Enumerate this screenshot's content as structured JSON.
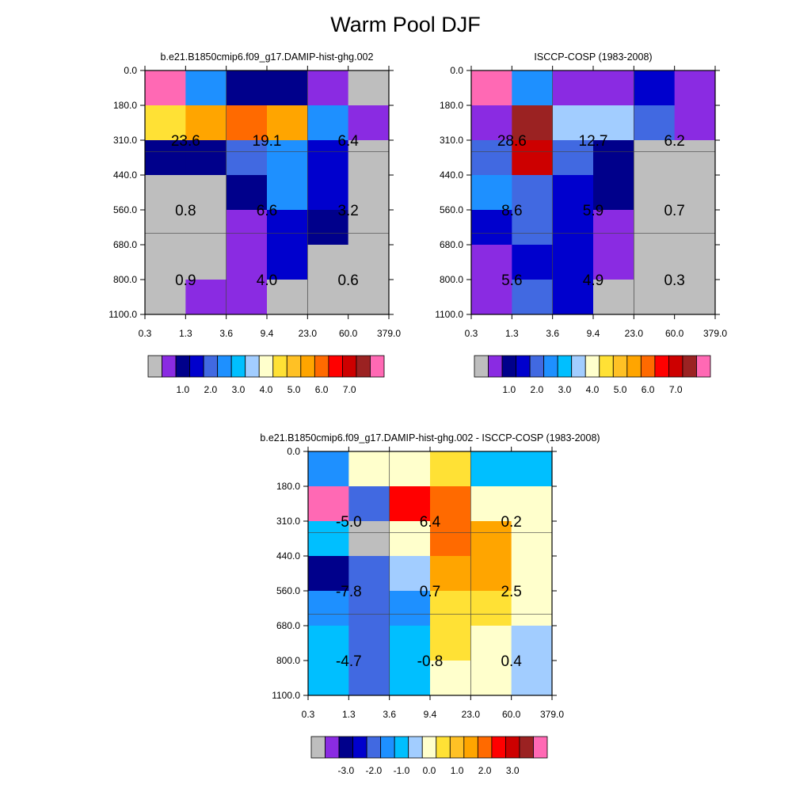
{
  "figure_title": "Warm Pool DJF",
  "chart_data": [
    {
      "type": "heatmap",
      "title": "b.e21.B1850cmip6.f09_g17.DAMIP-hist-ghg.002",
      "x_ticks": [
        "0.3",
        "1.3",
        "3.6",
        "9.4",
        "23.0",
        "60.0",
        "379.0"
      ],
      "y_ticks": [
        "0.0",
        "180.0",
        "310.0",
        "440.0",
        "560.0",
        "680.0",
        "800.0",
        "1100.0"
      ],
      "cell_colors": [
        [
          "#ff69b4",
          "#1e90ff",
          "#00008b",
          "#00008b",
          "#8a2be2",
          "#bebebe"
        ],
        [
          "#ffe135",
          "#ffa500",
          "#ff6a00",
          "#ffa500",
          "#1e90ff",
          "#8a2be2"
        ],
        [
          "#00008b",
          "#00008b",
          "#4169e1",
          "#1e90ff",
          "#0000cd",
          "#bebebe"
        ],
        [
          "#bebebe",
          "#bebebe",
          "#00008b",
          "#1e90ff",
          "#0000cd",
          "#bebebe"
        ],
        [
          "#bebebe",
          "#bebebe",
          "#8a2be2",
          "#0000cd",
          "#00008b",
          "#bebebe"
        ],
        [
          "#bebebe",
          "#bebebe",
          "#8a2be2",
          "#0000cd",
          "#bebebe",
          "#bebebe"
        ],
        [
          "#bebebe",
          "#8a2be2",
          "#8a2be2",
          "#bebebe",
          "#bebebe",
          "#bebebe"
        ]
      ],
      "annotations": [
        {
          "text": "23.6",
          "col": 0,
          "row": 1
        },
        {
          "text": "19.1",
          "col": 1,
          "row": 1
        },
        {
          "text": "6.4",
          "col": 2,
          "row": 1
        },
        {
          "text": "0.8",
          "col": 0,
          "row": 3
        },
        {
          "text": "6.6",
          "col": 1,
          "row": 3
        },
        {
          "text": "3.2",
          "col": 2,
          "row": 3
        },
        {
          "text": "0.9",
          "col": 0,
          "row": 5
        },
        {
          "text": "4.0",
          "col": 1,
          "row": 5
        },
        {
          "text": "0.6",
          "col": 2,
          "row": 5
        }
      ],
      "colorbar": {
        "colors": [
          "#bebebe",
          "#8a2be2",
          "#00008b",
          "#0000cd",
          "#4169e1",
          "#1e90ff",
          "#00bfff",
          "#a2cdff",
          "#ffffcc",
          "#ffe135",
          "#ffc125",
          "#ffa500",
          "#ff6a00",
          "#ff0000",
          "#cd0000",
          "#9b2222",
          "#ff69b4"
        ],
        "labels": [
          "1.0",
          "2.0",
          "3.0",
          "4.0",
          "5.0",
          "6.0",
          "7.0"
        ]
      }
    },
    {
      "type": "heatmap",
      "title": "ISCCP-COSP (1983-2008)",
      "x_ticks": [
        "0.3",
        "1.3",
        "3.6",
        "9.4",
        "23.0",
        "60.0",
        "379.0"
      ],
      "y_ticks": [
        "0.0",
        "180.0",
        "310.0",
        "440.0",
        "560.0",
        "680.0",
        "800.0",
        "1100.0"
      ],
      "cell_colors": [
        [
          "#ff69b4",
          "#1e90ff",
          "#8a2be2",
          "#8a2be2",
          "#0000cd",
          "#8a2be2"
        ],
        [
          "#8a2be2",
          "#9b2222",
          "#a2cdff",
          "#a2cdff",
          "#4169e1",
          "#8a2be2"
        ],
        [
          "#4169e1",
          "#cd0000",
          "#4169e1",
          "#00008b",
          "#bebebe",
          "#bebebe"
        ],
        [
          "#1e90ff",
          "#4169e1",
          "#0000cd",
          "#00008b",
          "#bebebe",
          "#bebebe"
        ],
        [
          "#0000cd",
          "#4169e1",
          "#0000cd",
          "#8a2be2",
          "#bebebe",
          "#bebebe"
        ],
        [
          "#8a2be2",
          "#0000cd",
          "#0000cd",
          "#8a2be2",
          "#bebebe",
          "#bebebe"
        ],
        [
          "#8a2be2",
          "#4169e1",
          "#0000cd",
          "#bebebe",
          "#bebebe",
          "#bebebe"
        ]
      ],
      "annotations": [
        {
          "text": "28.6",
          "col": 0,
          "row": 1
        },
        {
          "text": "12.7",
          "col": 1,
          "row": 1
        },
        {
          "text": "6.2",
          "col": 2,
          "row": 1
        },
        {
          "text": "8.6",
          "col": 0,
          "row": 3
        },
        {
          "text": "5.9",
          "col": 1,
          "row": 3
        },
        {
          "text": "0.7",
          "col": 2,
          "row": 3
        },
        {
          "text": "5.6",
          "col": 0,
          "row": 5
        },
        {
          "text": "4.9",
          "col": 1,
          "row": 5
        },
        {
          "text": "0.3",
          "col": 2,
          "row": 5
        }
      ],
      "colorbar": {
        "colors": [
          "#bebebe",
          "#8a2be2",
          "#00008b",
          "#0000cd",
          "#4169e1",
          "#1e90ff",
          "#00bfff",
          "#a2cdff",
          "#ffffcc",
          "#ffe135",
          "#ffc125",
          "#ffa500",
          "#ff6a00",
          "#ff0000",
          "#cd0000",
          "#9b2222",
          "#ff69b4"
        ],
        "labels": [
          "1.0",
          "2.0",
          "3.0",
          "4.0",
          "5.0",
          "6.0",
          "7.0"
        ]
      }
    },
    {
      "type": "heatmap",
      "title": "b.e21.B1850cmip6.f09_g17.DAMIP-hist-ghg.002 - ISCCP-COSP (1983-2008)",
      "x_ticks": [
        "0.3",
        "1.3",
        "3.6",
        "9.4",
        "23.0",
        "60.0",
        "379.0"
      ],
      "y_ticks": [
        "0.0",
        "180.0",
        "310.0",
        "440.0",
        "560.0",
        "680.0",
        "800.0",
        "1100.0"
      ],
      "cell_colors": [
        [
          "#1e90ff",
          "#ffffcc",
          "#ffffcc",
          "#ffe135",
          "#00bfff",
          "#00bfff"
        ],
        [
          "#ff69b4",
          "#4169e1",
          "#ff0000",
          "#ff6a00",
          "#ffffcc",
          "#ffffcc"
        ],
        [
          "#00bfff",
          "#bebebe",
          "#ffffcc",
          "#ff6a00",
          "#ffa500",
          "#ffffcc"
        ],
        [
          "#00008b",
          "#4169e1",
          "#a2cdff",
          "#ffa500",
          "#ffa500",
          "#ffffcc"
        ],
        [
          "#1e90ff",
          "#4169e1",
          "#1e90ff",
          "#ffe135",
          "#ffe135",
          "#ffffcc"
        ],
        [
          "#00bfff",
          "#4169e1",
          "#00bfff",
          "#ffe135",
          "#ffffcc",
          "#a2cdff"
        ],
        [
          "#00bfff",
          "#4169e1",
          "#00bfff",
          "#ffffcc",
          "#ffffcc",
          "#a2cdff"
        ]
      ],
      "annotations": [
        {
          "text": "-5.0",
          "col": 0,
          "row": 1
        },
        {
          "text": "6.4",
          "col": 1,
          "row": 1
        },
        {
          "text": "0.2",
          "col": 2,
          "row": 1
        },
        {
          "text": "-7.8",
          "col": 0,
          "row": 3
        },
        {
          "text": "0.7",
          "col": 1,
          "row": 3
        },
        {
          "text": "2.5",
          "col": 2,
          "row": 3
        },
        {
          "text": "-4.7",
          "col": 0,
          "row": 5
        },
        {
          "text": "-0.8",
          "col": 1,
          "row": 5
        },
        {
          "text": "0.4",
          "col": 2,
          "row": 5
        }
      ],
      "colorbar": {
        "colors": [
          "#bebebe",
          "#8a2be2",
          "#00008b",
          "#0000cd",
          "#4169e1",
          "#1e90ff",
          "#00bfff",
          "#a2cdff",
          "#ffffcc",
          "#ffe135",
          "#ffc125",
          "#ffa500",
          "#ff6a00",
          "#ff0000",
          "#cd0000",
          "#9b2222",
          "#ff69b4"
        ],
        "labels": [
          "-3.0",
          "-2.0",
          "-1.0",
          "0.0",
          "1.0",
          "2.0",
          "3.0"
        ]
      }
    }
  ]
}
